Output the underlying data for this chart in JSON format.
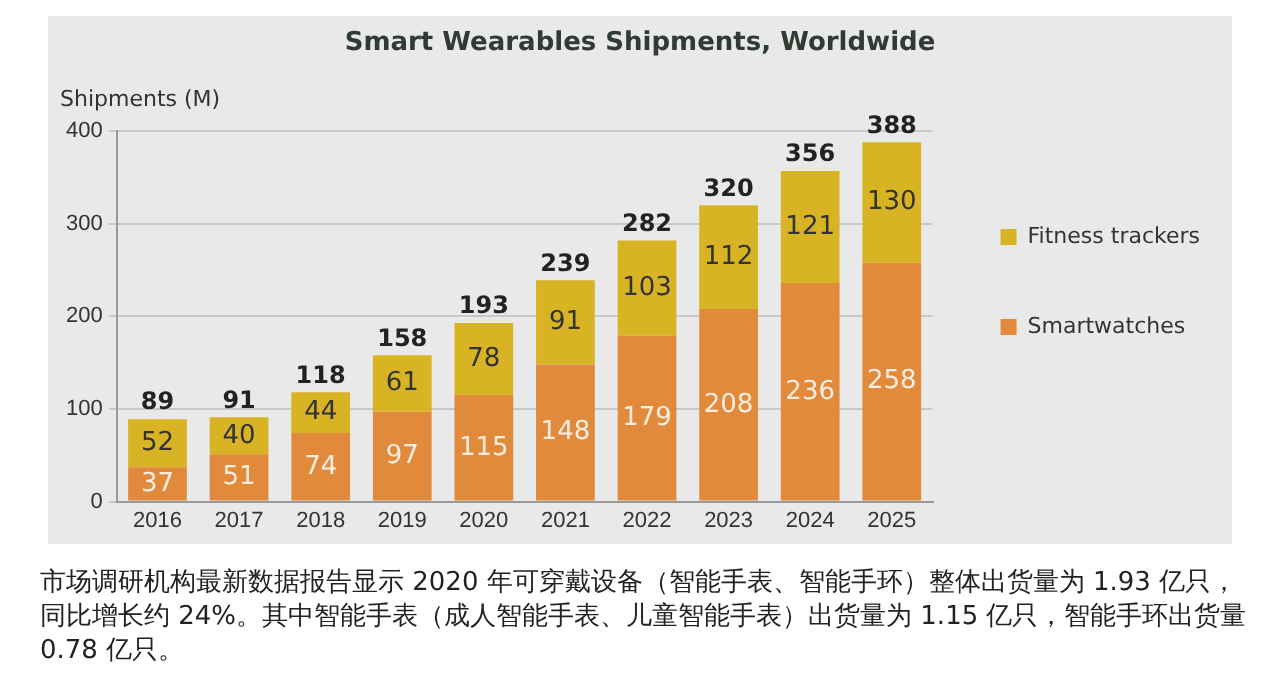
{
  "chart_data": {
    "type": "bar",
    "title": "Smart Wearables Shipments, Worldwide",
    "ylabel": "Shipments (M)",
    "categories": [
      "2016",
      "2017",
      "2018",
      "2019",
      "2020",
      "2021",
      "2022",
      "2023",
      "2024",
      "2025"
    ],
    "series": [
      {
        "name": "Smartwatches",
        "color": "#e28a3b",
        "values": [
          37,
          51,
          74,
          97,
          115,
          148,
          179,
          208,
          236,
          258
        ]
      },
      {
        "name": "Fitness trackers",
        "color": "#d8b425",
        "values": [
          52,
          40,
          44,
          61,
          78,
          91,
          103,
          112,
          121,
          130
        ]
      }
    ],
    "stacked": true,
    "data_labels": true,
    "totals": [
      "89",
      "91",
      "118",
      "158",
      "193",
      "239",
      "282",
      "320",
      "356",
      "388"
    ],
    "ylim": [
      0,
      400
    ],
    "yticks": [
      0,
      100,
      200,
      300,
      400
    ],
    "grid": "y",
    "legend": "right",
    "annotations": [
      "市场调研机构最新数据报告显示 2020 年可穿戴设备（智能手表、智能手环）整体出货量为 1.93 亿只，同比增长约 24%。其中智能手表（成人智能手表、儿童智能手表）出货量为 1.15 亿只，智能手环出货量 0.78 亿只。"
    ]
  }
}
